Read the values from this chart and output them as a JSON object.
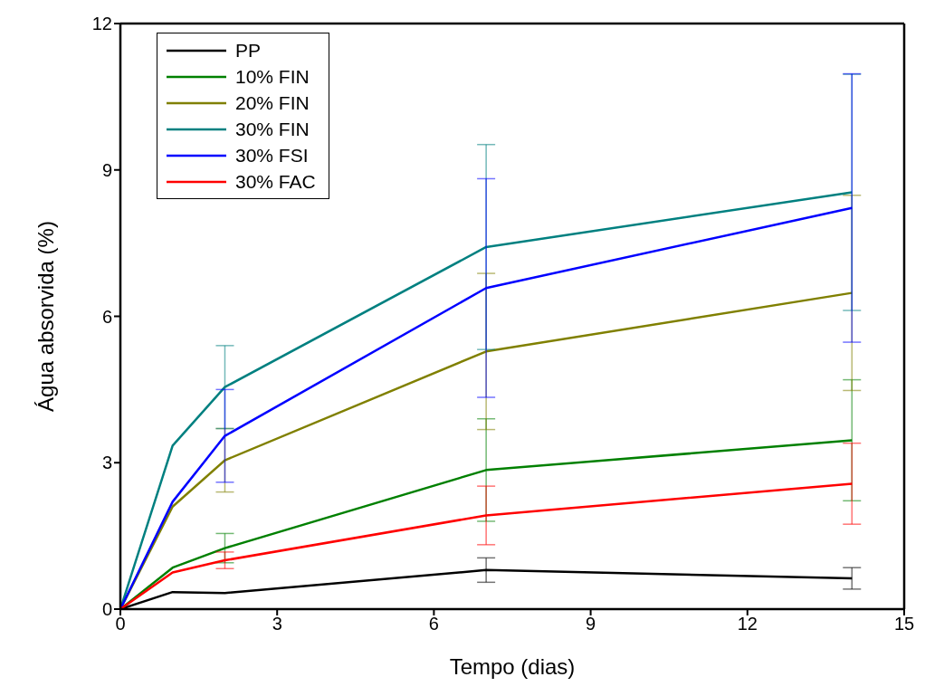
{
  "chart_data": {
    "type": "line",
    "xlabel": "Tempo (dias)",
    "ylabel": "Água absorvida (%)",
    "x": [
      0,
      1,
      2,
      7,
      14
    ],
    "xlim": [
      0,
      15
    ],
    "xticks": [
      0,
      3,
      6,
      9,
      12,
      15
    ],
    "ylim": [
      0,
      12
    ],
    "yticks": [
      0,
      3,
      6,
      9,
      12
    ],
    "grid": false,
    "legend": "top left",
    "marker": "none",
    "line_style": "solid",
    "series": [
      {
        "name": "PP",
        "color": "#000000",
        "values": [
          0,
          0.35,
          0.33,
          0.8,
          0.63
        ],
        "errors": [
          null,
          null,
          null,
          0.25,
          0.22
        ]
      },
      {
        "name": "10% FIN",
        "color": "#008000",
        "values": [
          0,
          0.85,
          1.25,
          2.85,
          3.46
        ],
        "errors": [
          null,
          null,
          0.3,
          1.05,
          1.24
        ]
      },
      {
        "name": "20% FIN",
        "color": "#808000",
        "values": [
          0,
          2.1,
          3.05,
          5.28,
          6.48
        ],
        "errors": [
          null,
          null,
          0.65,
          1.6,
          2.0
        ]
      },
      {
        "name": "30% FIN",
        "color": "#008080",
        "values": [
          0,
          3.35,
          4.55,
          7.42,
          8.54
        ],
        "errors": [
          null,
          null,
          0.85,
          2.1,
          2.42
        ]
      },
      {
        "name": "30% FSI",
        "color": "#0000ff",
        "values": [
          0,
          2.2,
          3.55,
          6.58,
          8.22
        ],
        "errors": [
          null,
          null,
          0.95,
          2.24,
          2.75
        ]
      },
      {
        "name": "30% FAC",
        "color": "#ff0000",
        "values": [
          0,
          0.75,
          1.0,
          1.92,
          2.57
        ],
        "errors": [
          null,
          null,
          0.17,
          0.6,
          0.83
        ]
      }
    ]
  }
}
